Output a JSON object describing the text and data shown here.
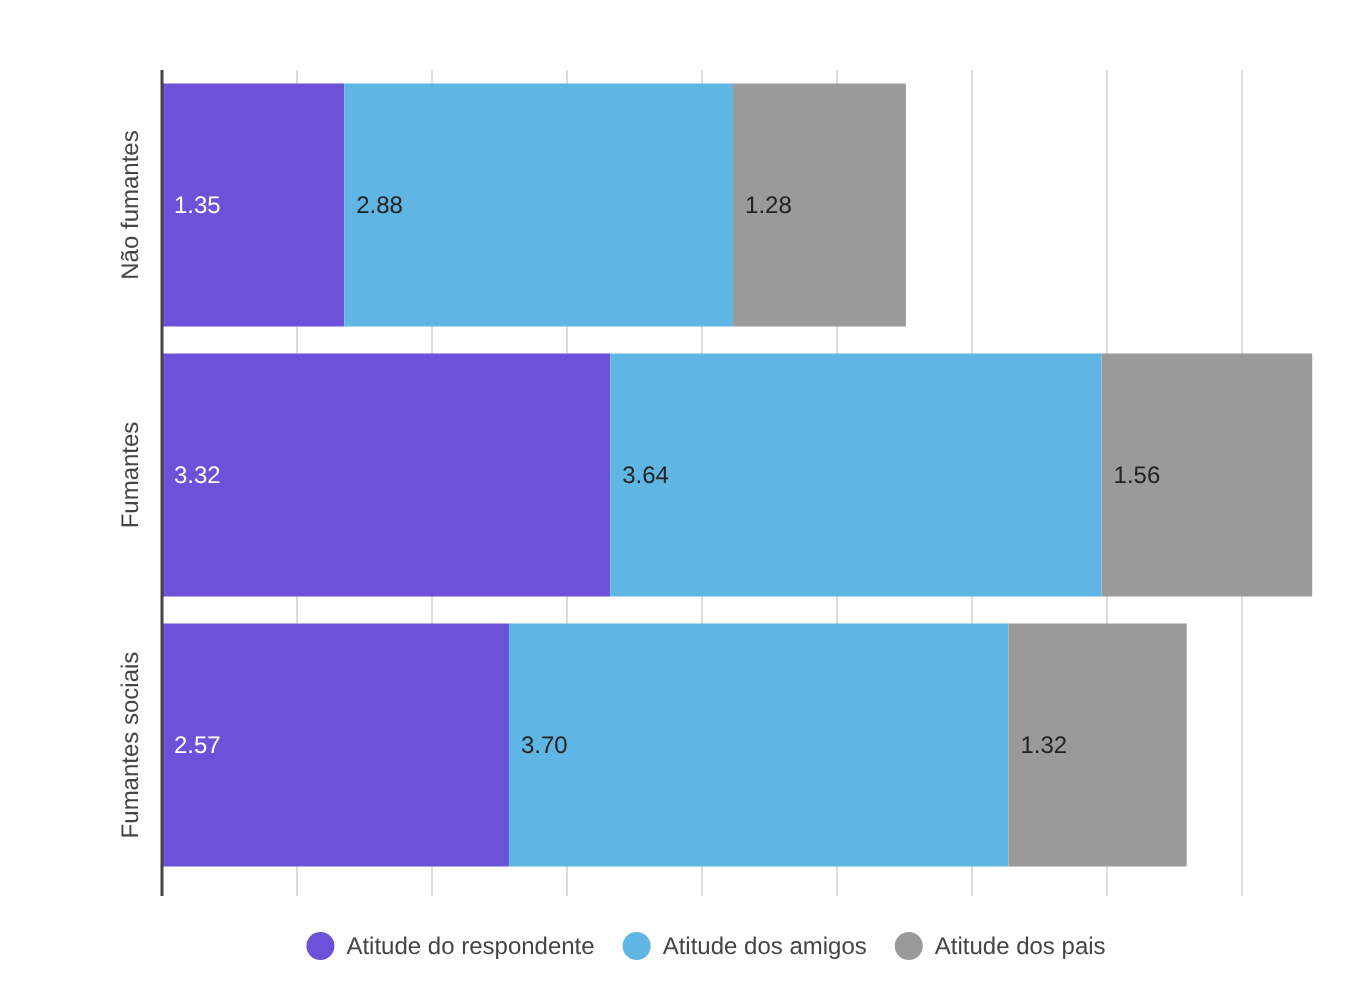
{
  "chart_data": {
    "type": "bar",
    "orientation": "horizontal",
    "stacked": true,
    "categories": [
      "Não fumantes",
      "Fumantes",
      "Fumantes sociais"
    ],
    "series": [
      {
        "name": "Atitude do respondente",
        "color": "#6c52d9",
        "values": [
          1.35,
          3.32,
          2.57
        ],
        "value_labels": [
          "1.35",
          "3.32",
          "2.57"
        ]
      },
      {
        "name": "Atitude dos amigos",
        "color": "#5fb6e4",
        "values": [
          2.88,
          3.64,
          3.7
        ],
        "value_labels": [
          "2.88",
          "3.64",
          "3.70"
        ]
      },
      {
        "name": "Atitude dos pais",
        "color": "#9a9a9a",
        "values": [
          1.28,
          1.56,
          1.32
        ],
        "value_labels": [
          "1.28",
          "1.56",
          "1.32"
        ]
      }
    ],
    "tick_labels": "y",
    "grid": "x",
    "legend": "bottom"
  }
}
